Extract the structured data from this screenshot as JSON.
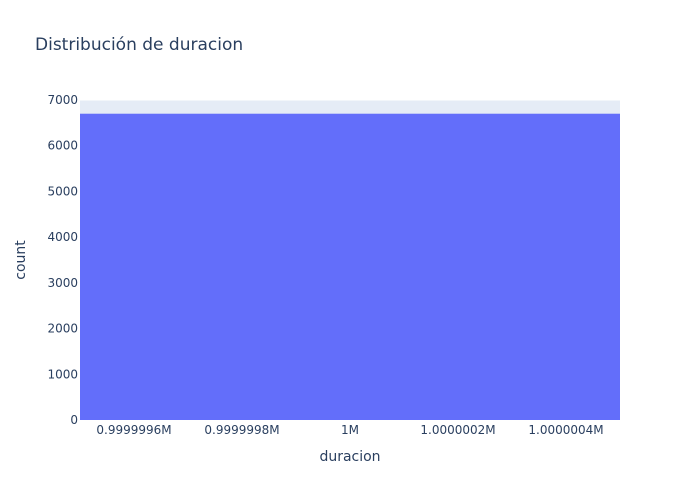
{
  "chart_data": {
    "type": "bar",
    "title": "Distribución de duracion",
    "xlabel": "duracion",
    "ylabel": "count",
    "x_range": [
      999999.5,
      1000000.5
    ],
    "xticks": [
      {
        "value": 999999.6,
        "label": "0.9999996M"
      },
      {
        "value": 999999.8,
        "label": "0.9999998M"
      },
      {
        "value": 1000000.0,
        "label": "1M"
      },
      {
        "value": 1000000.2,
        "label": "1.0000002M"
      },
      {
        "value": 1000000.4,
        "label": "1.0000004M"
      }
    ],
    "ylim": [
      0,
      7000
    ],
    "yticks": [
      0,
      1000,
      2000,
      3000,
      4000,
      5000,
      6000,
      7000
    ],
    "bins": [
      {
        "x0": 999999.5,
        "x1": 1000000.5,
        "count": 6700
      }
    ],
    "grid": true,
    "legend": "none"
  },
  "colors": {
    "bar": "#636efa",
    "plot_background": "#e5ecf6",
    "grid": "#ffffff",
    "text": "#2a3f5f"
  }
}
